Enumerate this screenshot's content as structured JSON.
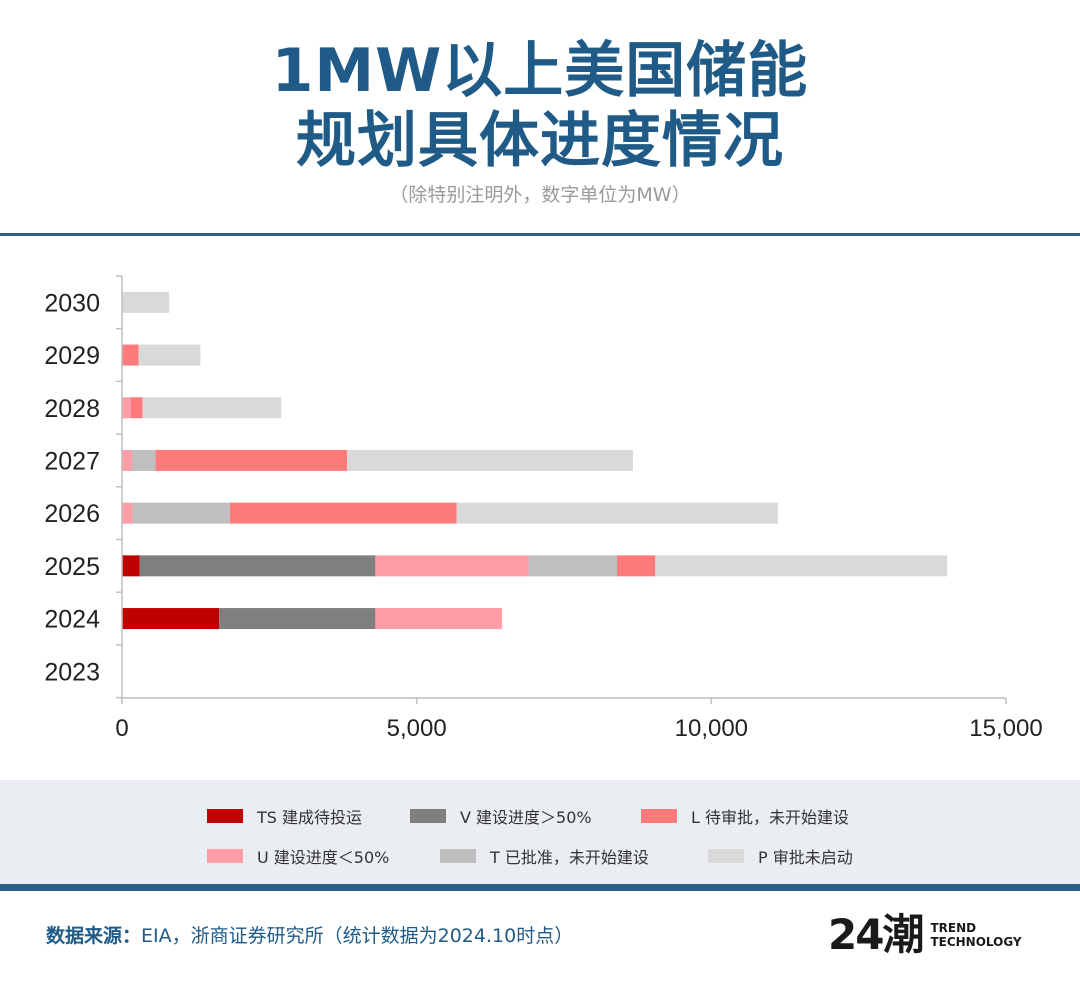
{
  "header": {
    "title_line1": "1MW以上美国储能",
    "title_line2": "规划具体进度情况",
    "subtitle": "（除特别注明外，数字单位为MW）"
  },
  "chart_data": {
    "type": "bar",
    "orientation": "horizontal",
    "stacked": true,
    "title": "1MW以上美国储能规划具体进度情况",
    "unit": "MW",
    "categories": [
      "2030",
      "2029",
      "2028",
      "2027",
      "2026",
      "2025",
      "2024",
      "2023"
    ],
    "xlim": [
      0,
      15000
    ],
    "xticks": [
      0,
      5000,
      10000,
      15000
    ],
    "xtick_labels": [
      "0",
      "5,000",
      "10,000",
      "15,000"
    ],
    "grid": false,
    "legend_position": "bottom",
    "series": [
      {
        "name": "TS 建成待投运",
        "color": "#c00000",
        "values": [
          0,
          0,
          0,
          0,
          0,
          300,
          1650,
          0
        ]
      },
      {
        "name": "V 建设进度＞50%",
        "color": "#7f7f7f",
        "values": [
          0,
          0,
          0,
          0,
          0,
          4000,
          2650,
          0
        ]
      },
      {
        "name": "U 建设进度＜50%",
        "color": "#ff9da6",
        "values": [
          0,
          0,
          150,
          170,
          180,
          2600,
          2150,
          0
        ]
      },
      {
        "name": "T 已批准，未开始建设",
        "color": "#bfbfbf",
        "values": [
          0,
          0,
          0,
          400,
          1650,
          1500,
          0,
          0
        ]
      },
      {
        "name": "L 待审批，未开始建设",
        "color": "#ff7b7b",
        "values": [
          0,
          280,
          200,
          3250,
          3850,
          650,
          0,
          0
        ]
      },
      {
        "name": "P 审批未启动",
        "color": "#d9d9d9",
        "values": [
          800,
          1050,
          2350,
          4850,
          5450,
          4950,
          0,
          0
        ]
      }
    ]
  },
  "legend": {
    "items": [
      {
        "label": "TS 建成待投运",
        "color": "#c00000"
      },
      {
        "label": "V 建设进度＞50%",
        "color": "#7f7f7f"
      },
      {
        "label": "L 待审批，未开始建设",
        "color": "#ff7b7b"
      },
      {
        "label": "U 建设进度＜50%",
        "color": "#ff9da6"
      },
      {
        "label": "T 已批准，未开始建设",
        "color": "#bfbfbf"
      },
      {
        "label": "P 审批未启动",
        "color": "#d9d9d9"
      }
    ]
  },
  "footer": {
    "source_label": "数据来源：",
    "source_text": "EIA，浙商证券研究所（统计数据为2024.10时点）",
    "logo_mark": "24潮",
    "logo_line1": "TREND",
    "logo_line2": "TECHNOLOGY"
  }
}
